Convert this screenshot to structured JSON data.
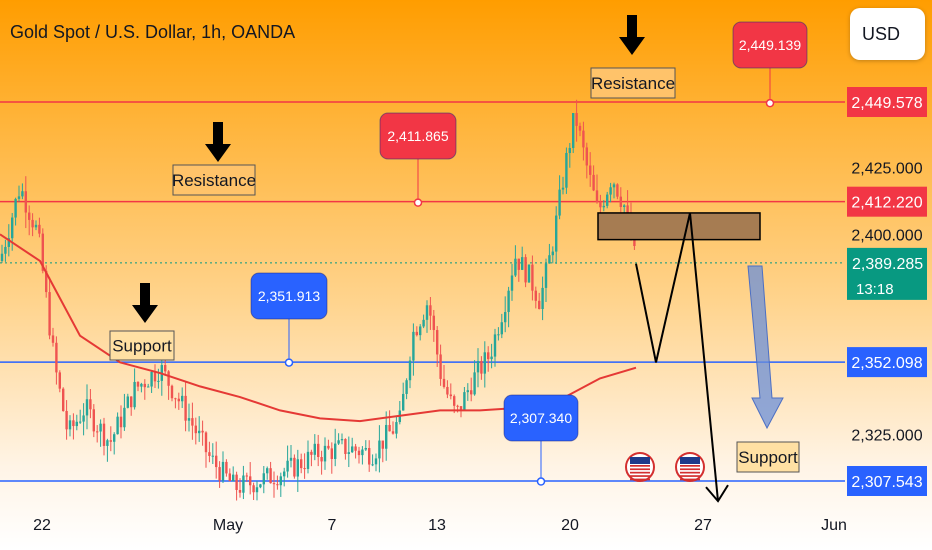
{
  "header": {
    "title": "Gold Spot / U.S. Dollar, 1h, OANDA",
    "currency_button": "USD"
  },
  "colors": {
    "red_line": "#f23645",
    "blue_line": "#2962ff",
    "ma_line": "#e53935",
    "candle_up": "#26a69a",
    "candle_down": "#ef5350",
    "current_price": "#089981",
    "zone_fill": "#a67c52"
  },
  "chart_data": {
    "type": "line",
    "x_ticks": [
      "22",
      "May",
      "7",
      "13",
      "20",
      "27",
      "Jun"
    ],
    "y_ticks": [
      "2,425.000",
      "2,400.000",
      "2,325.000"
    ],
    "price_scale_labels": [
      {
        "id": "r2449",
        "text": "2,449.578",
        "value": 2449.578,
        "color": "#f23645"
      },
      {
        "id": "r2412",
        "text": "2,412.220",
        "value": 2412.22,
        "color": "#f23645"
      },
      {
        "id": "b2352",
        "text": "2,352.098",
        "value": 2352.098,
        "color": "#2962ff"
      },
      {
        "id": "b2307",
        "text": "2,307.543",
        "value": 2307.543,
        "color": "#2962ff"
      }
    ],
    "current_price": {
      "value": "2,389.285",
      "countdown": "13:18"
    },
    "horizontal_levels": [
      {
        "value": 2449.578,
        "color": "#f23645"
      },
      {
        "value": 2412.22,
        "color": "#f23645"
      },
      {
        "value": 2352.098,
        "color": "#2962ff"
      },
      {
        "value": 2307.543,
        "color": "#2962ff"
      }
    ],
    "price_callouts": [
      {
        "text": "2,449.139",
        "value": 2449.139,
        "color": "#f23645"
      },
      {
        "text": "2,411.865",
        "value": 2411.865,
        "color": "#f23645"
      },
      {
        "text": "2,351.913",
        "value": 2351.913,
        "color": "#2962ff"
      },
      {
        "text": "2,307.340",
        "value": 2307.34,
        "color": "#2962ff"
      }
    ],
    "annotations": [
      {
        "text": "Resistance",
        "kind": "resistance"
      },
      {
        "text": "Resistance",
        "kind": "resistance"
      },
      {
        "text": "Support",
        "kind": "support"
      },
      {
        "text": "Support",
        "kind": "support"
      }
    ],
    "price_path": [
      [
        0,
        2390
      ],
      [
        20,
        2418
      ],
      [
        38,
        2400
      ],
      [
        55,
        2350
      ],
      [
        68,
        2325
      ],
      [
        85,
        2335
      ],
      [
        110,
        2322
      ],
      [
        135,
        2342
      ],
      [
        160,
        2350
      ],
      [
        185,
        2334
      ],
      [
        210,
        2316
      ],
      [
        235,
        2305
      ],
      [
        262,
        2308
      ],
      [
        290,
        2312
      ],
      [
        318,
        2318
      ],
      [
        345,
        2320
      ],
      [
        372,
        2318
      ],
      [
        400,
        2330
      ],
      [
        412,
        2362
      ],
      [
        428,
        2375
      ],
      [
        442,
        2345
      ],
      [
        456,
        2332
      ],
      [
        472,
        2345
      ],
      [
        490,
        2355
      ],
      [
        505,
        2375
      ],
      [
        515,
        2392
      ],
      [
        528,
        2385
      ],
      [
        540,
        2375
      ],
      [
        552,
        2395
      ],
      [
        565,
        2425
      ],
      [
        575,
        2445
      ],
      [
        585,
        2428
      ],
      [
        598,
        2408
      ],
      [
        612,
        2422
      ],
      [
        625,
        2410
      ],
      [
        638,
        2385
      ]
    ],
    "moving_average": [
      [
        0,
        2400
      ],
      [
        40,
        2390
      ],
      [
        80,
        2362
      ],
      [
        120,
        2352
      ],
      [
        160,
        2348
      ],
      [
        200,
        2343
      ],
      [
        240,
        2339
      ],
      [
        280,
        2334
      ],
      [
        320,
        2331
      ],
      [
        360,
        2330
      ],
      [
        400,
        2332
      ],
      [
        440,
        2334
      ],
      [
        480,
        2334
      ],
      [
        520,
        2335
      ],
      [
        560,
        2338
      ],
      [
        600,
        2346
      ],
      [
        636,
        2350
      ]
    ],
    "projection_path": [
      [
        636,
        2389
      ],
      [
        656,
        2352
      ],
      [
        690,
        2408
      ],
      [
        718,
        2300
      ]
    ],
    "zone": {
      "x0": 598,
      "x1": 760,
      "top": 2408,
      "bottom": 2398
    },
    "grid": false
  }
}
